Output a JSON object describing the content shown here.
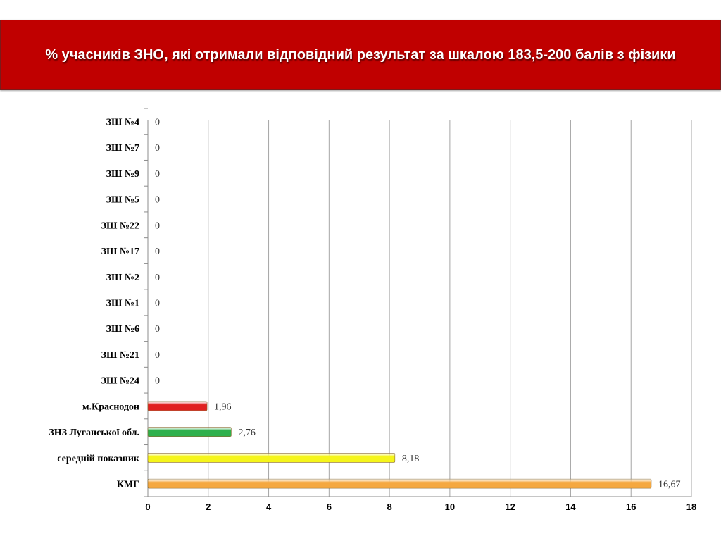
{
  "header": {
    "title": "% учасників ЗНО, які отримали відповідний результат за шкалою 183,5-200 балів з фізики"
  },
  "chart_data": {
    "type": "bar",
    "orientation": "horizontal",
    "categories": [
      "ЗШ №4",
      "ЗШ №7",
      "ЗШ №9",
      "ЗШ №5",
      "ЗШ №22",
      "ЗШ №17",
      "ЗШ №2",
      "ЗШ №1",
      "ЗШ №6",
      "ЗШ №21",
      "ЗШ №24",
      "м.Краснодон",
      "ЗНЗ Луганської обл.",
      "середній показник",
      "КМГ"
    ],
    "values": [
      0,
      0,
      0,
      0,
      0,
      0,
      0,
      0,
      0,
      0,
      0,
      1.96,
      2.76,
      8.18,
      16.67
    ],
    "value_labels": [
      "0",
      "0",
      "0",
      "0",
      "0",
      "0",
      "0",
      "0",
      "0",
      "0",
      "0",
      "1,96",
      "2,76",
      "8,18",
      "16,67"
    ],
    "bar_colors": [
      "#ffffff",
      "#ffffff",
      "#ffffff",
      "#ffffff",
      "#ffffff",
      "#ffffff",
      "#ffffff",
      "#ffffff",
      "#ffffff",
      "#ffffff",
      "#ffffff",
      "#e02020",
      "#2fb04c",
      "#f5f51a",
      "#f5a840"
    ],
    "xlim": [
      0,
      18
    ],
    "xticks": [
      0,
      2,
      4,
      6,
      8,
      10,
      12,
      14,
      16,
      18
    ],
    "grid": true,
    "title": "",
    "xlabel": "",
    "ylabel": ""
  }
}
